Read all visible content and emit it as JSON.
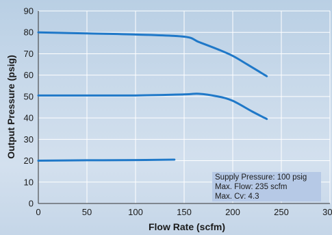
{
  "chart_data": {
    "type": "line",
    "xlabel": "Flow Rate (scfm)",
    "ylabel": "Output Pressure (psig)",
    "xlim": [
      0,
      300
    ],
    "ylim": [
      0,
      90
    ],
    "x_ticks": [
      0,
      50,
      100,
      150,
      200,
      250,
      300
    ],
    "y_ticks": [
      0,
      10,
      20,
      30,
      40,
      50,
      60,
      70,
      80,
      90
    ],
    "grid": true,
    "series": [
      {
        "x": [
          0,
          50,
          100,
          150,
          165,
          185,
          200,
          215,
          235
        ],
        "y": [
          80,
          79.5,
          79,
          78,
          75.5,
          72,
          69,
          65,
          59.5
        ]
      },
      {
        "x": [
          0,
          50,
          100,
          150,
          165,
          185,
          200,
          220,
          235
        ],
        "y": [
          50.5,
          50.5,
          50.5,
          51,
          51.3,
          50,
          48,
          43,
          39.5
        ]
      },
      {
        "x": [
          0,
          50,
          100,
          140
        ],
        "y": [
          20,
          20.2,
          20.3,
          20.5
        ]
      }
    ],
    "annotations": [
      "Supply Pressure: 100 psig",
      "Max. Flow: 235 scfm",
      "Max. Cv: 4.3"
    ],
    "colors": {
      "line": "#1f78c8",
      "grid": "#ffffff",
      "annotation_box": "#b6c9e6"
    }
  }
}
